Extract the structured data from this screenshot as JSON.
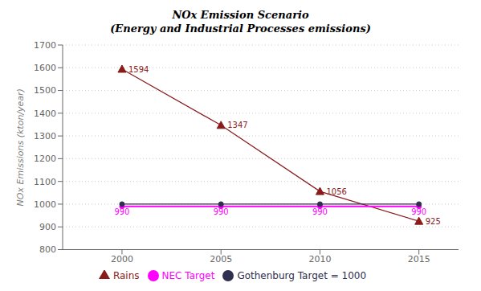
{
  "chart_data": {
    "type": "line",
    "title": "NOx Emission Scenario",
    "subtitle": "(Energy and Industrial Processes emissions)",
    "ylabel": "NOx Emissions (kton/year)",
    "x": [
      2000,
      2005,
      2010,
      2015
    ],
    "series": [
      {
        "name": "Rains",
        "color": "#8B1A1A",
        "values": [
          1594,
          1347,
          1056,
          925
        ],
        "marker": "triangle",
        "data_labels": true
      },
      {
        "name": "NEC Target",
        "color": "#FF00FF",
        "values": [
          990,
          990,
          990,
          990
        ],
        "marker": "circle",
        "data_labels": true
      },
      {
        "name": "Gothenburg Target = 1000",
        "color": "#2F2F4F",
        "values": [
          1000,
          1000,
          1000,
          1000
        ],
        "marker": "circle"
      }
    ],
    "xlim": [
      1997,
      2017
    ],
    "xticks": [
      2000,
      2005,
      2010,
      2015
    ],
    "ylim": [
      800,
      1700
    ],
    "yticks": [
      800,
      900,
      1000,
      1100,
      1200,
      1300,
      1400,
      1500,
      1600,
      1700
    ],
    "grid": true,
    "legend": "bottom"
  }
}
